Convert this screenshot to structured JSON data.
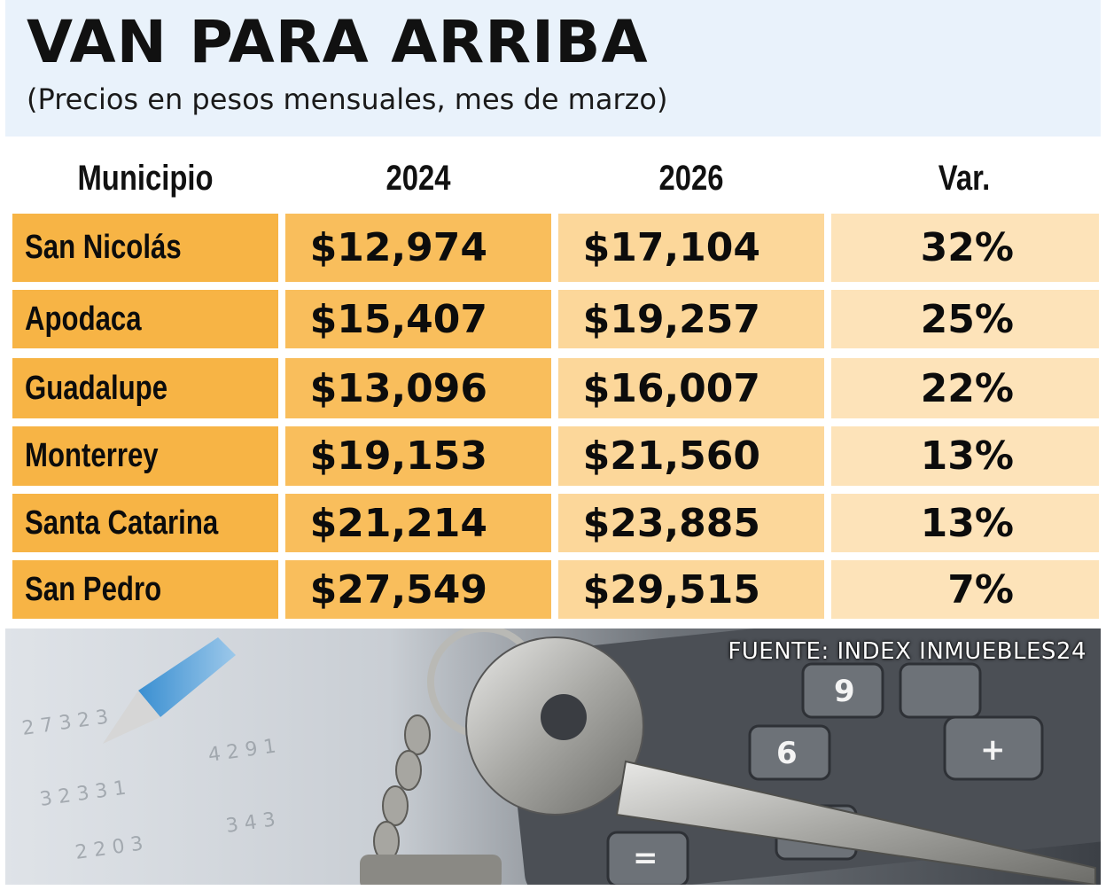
{
  "title": "VAN PARA ARRIBA",
  "subtitle": "(Precios en pesos mensuales, mes de marzo)",
  "source": "FUENTE: INDEX INMUEBLES24",
  "colors": {
    "header_bg": "#e9f2fb",
    "col_municipio": "#f7b445",
    "col_2024": "#f9be5c",
    "col_2026": "#fcd79a",
    "col_var": "#fde3b9"
  },
  "chart_data": {
    "type": "table",
    "title": "VAN PARA ARRIBA",
    "subtitle": "(Precios en pesos mensuales, mes de marzo)",
    "columns": [
      "Municipio",
      "2024",
      "2026",
      "Var."
    ],
    "rows": [
      {
        "municipio": "San Nicolás",
        "y2024": "$12,974",
        "y2026": "$17,104",
        "var": "32%"
      },
      {
        "municipio": "Apodaca",
        "y2024": "$15,407",
        "y2026": "$19,257",
        "var": "25%"
      },
      {
        "municipio": "Guadalupe",
        "y2024": "$13,096",
        "y2026": "$16,007",
        "var": "22%"
      },
      {
        "municipio": "Monterrey",
        "y2024": "$19,153",
        "y2026": "$21,560",
        "var": "13%"
      },
      {
        "municipio": "Santa Catarina",
        "y2024": "$21,214",
        "y2026": "$23,885",
        "var": "13%"
      },
      {
        "municipio": "San Pedro",
        "y2024": "$27,549",
        "y2026": "$29,515",
        "var": "7%"
      }
    ],
    "source": "FUENTE: INDEX INMUEBLES24"
  }
}
